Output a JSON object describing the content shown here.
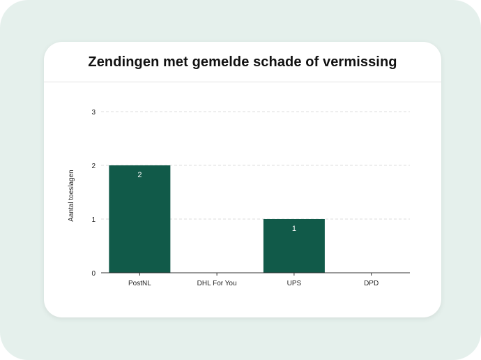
{
  "colors": {
    "background": "#e5f0ec",
    "card": "#ffffff",
    "bar": "#115a49",
    "grid": "#dddddd",
    "axis": "#333333"
  },
  "chart_data": {
    "type": "bar",
    "title": "Zendingen met gemelde schade of vermissing",
    "xlabel": "",
    "ylabel": "Aantal toeslagen",
    "categories": [
      "PostNL",
      "DHL For You",
      "UPS",
      "DPD"
    ],
    "values": [
      2,
      0,
      1,
      0
    ],
    "data_labels": [
      "2",
      "",
      "1",
      ""
    ],
    "ylim": [
      0,
      3
    ],
    "yticks": [
      "0",
      "1",
      "2",
      "3"
    ],
    "grid": true,
    "legend": "none"
  }
}
